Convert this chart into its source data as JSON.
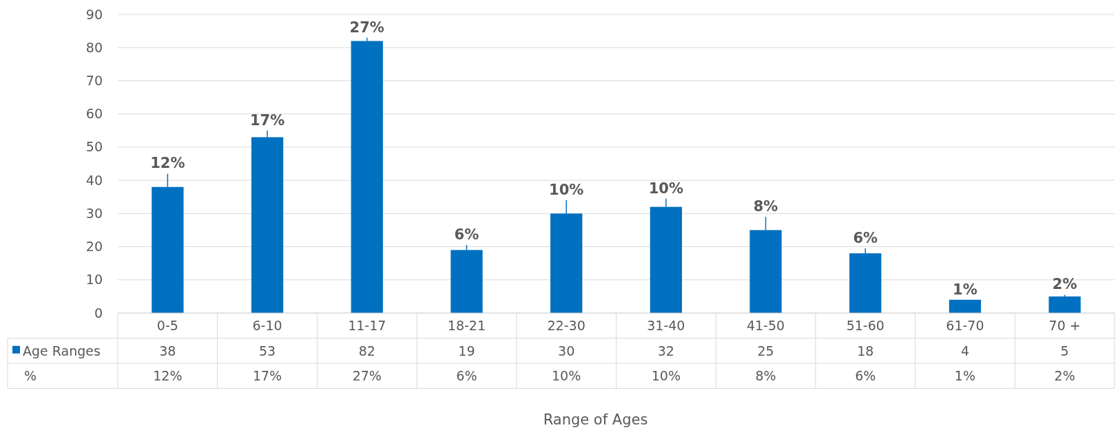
{
  "chart_data": {
    "type": "bar",
    "categories": [
      "0-5",
      "6-10",
      "11-17",
      "18-21",
      "22-30",
      "31-40",
      "41-50",
      "51-60",
      "61-70",
      "70 +"
    ],
    "series": [
      {
        "name": "Age Ranges",
        "color": "#0070c0",
        "values": [
          38,
          53,
          82,
          19,
          30,
          32,
          25,
          18,
          4,
          5
        ],
        "errors": [
          [
            38,
            42
          ],
          [
            53,
            55
          ],
          [
            82,
            83
          ],
          [
            19,
            20.5
          ],
          [
            30,
            34
          ],
          [
            32,
            34.5
          ],
          [
            25,
            29
          ],
          [
            18,
            19.5
          ],
          null,
          [
            5,
            5.5
          ]
        ],
        "value_labels": [
          "38",
          "53",
          "82",
          "19",
          "30",
          "32",
          "25",
          "18",
          "4",
          "5"
        ]
      }
    ],
    "ylim": [
      0,
      90
    ],
    "yticks": [
      0,
      10,
      20,
      30,
      40,
      50,
      60,
      70,
      80,
      90
    ],
    "grid": "y",
    "legend": "bottom",
    "annotations": [
      "%",
      "Range of Ages",
      {
        "text": "12%",
        "x": "0-5",
        "y": 42
      },
      {
        "text": "17%",
        "x": "6-10",
        "y": 55
      },
      {
        "text": "27%",
        "x": "11-17",
        "y": 83
      },
      {
        "text": "6%",
        "x": "18-21",
        "y": 20.5
      },
      {
        "text": "10%",
        "x": "22-30",
        "y": 34
      },
      {
        "text": "10%",
        "x": "31-40",
        "y": 34.5
      },
      {
        "text": "8%",
        "x": "41-50",
        "y": 29
      },
      {
        "text": "6%",
        "x": "51-60",
        "y": 19.5
      },
      {
        "text": "1%",
        "x": "61-70",
        "y": 4
      },
      {
        "text": "2%",
        "x": "70 +",
        "y": 5.5
      }
    ]
  }
}
